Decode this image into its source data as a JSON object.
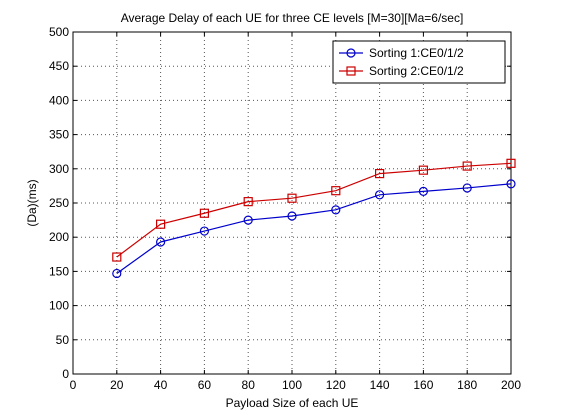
{
  "chart_data": {
    "type": "line",
    "title": "Average Delay of each UE  for three CE levels [M=30][Ma=6/sec]",
    "xlabel": "Payload Size of each UE",
    "ylabel": "(Da)(ms)",
    "xlim": [
      0,
      200
    ],
    "ylim": [
      0,
      500
    ],
    "xticks": [
      0,
      20,
      40,
      60,
      80,
      100,
      120,
      140,
      160,
      180,
      200
    ],
    "yticks": [
      0,
      50,
      100,
      150,
      200,
      250,
      300,
      350,
      400,
      450,
      500
    ],
    "grid": true,
    "legend_position": "top-right",
    "x": [
      20,
      40,
      60,
      80,
      100,
      120,
      140,
      160,
      180,
      200
    ],
    "series": [
      {
        "name": "Sorting 1:CE0/1/2",
        "color": "#0000cc",
        "marker": "circle",
        "values": [
          147,
          193,
          209,
          225,
          231,
          240,
          262,
          267,
          272,
          278
        ]
      },
      {
        "name": "Sorting 2:CE0/1/2",
        "color": "#cc0000",
        "marker": "square",
        "values": [
          171,
          219,
          235,
          252,
          257,
          268,
          293,
          298,
          304,
          308
        ]
      }
    ]
  }
}
